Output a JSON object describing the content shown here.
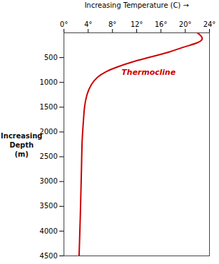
{
  "chart_data": {
    "type": "line",
    "xlabel": "Increasing Temperature (C) →",
    "ylabel": "Increasing Depth (m)",
    "x": [
      22.0,
      22.5,
      22.8,
      22.0,
      20.0,
      17.5,
      14.5,
      11.5,
      9.0,
      7.0,
      5.5,
      4.5,
      3.8,
      3.4,
      3.2,
      3.0,
      2.9,
      2.8,
      2.7,
      2.6,
      2.5
    ],
    "values": [
      0,
      50,
      120,
      200,
      280,
      380,
      480,
      580,
      680,
      780,
      900,
      1050,
      1250,
      1500,
      1800,
      2200,
      2700,
      3200,
      3700,
      4100,
      4500
    ],
    "color": "#cc0000",
    "xlim": [
      0,
      24
    ],
    "ylim": [
      0,
      4500
    ],
    "xticks": [
      {
        "value": 0,
        "label": "0°"
      },
      {
        "value": 4,
        "label": "4°"
      },
      {
        "value": 8,
        "label": "8°"
      },
      {
        "value": 12,
        "label": "12°"
      },
      {
        "value": 16,
        "label": "16°"
      },
      {
        "value": 20,
        "label": "20°"
      },
      {
        "value": 24,
        "label": "24°"
      }
    ],
    "yticks": [
      500,
      1000,
      1500,
      2000,
      2500,
      3000,
      3500,
      4000,
      4500
    ],
    "annotations": [
      {
        "text": "Thermocline",
        "x": 9.5,
        "y": 850,
        "color": "#cc0000"
      }
    ]
  }
}
